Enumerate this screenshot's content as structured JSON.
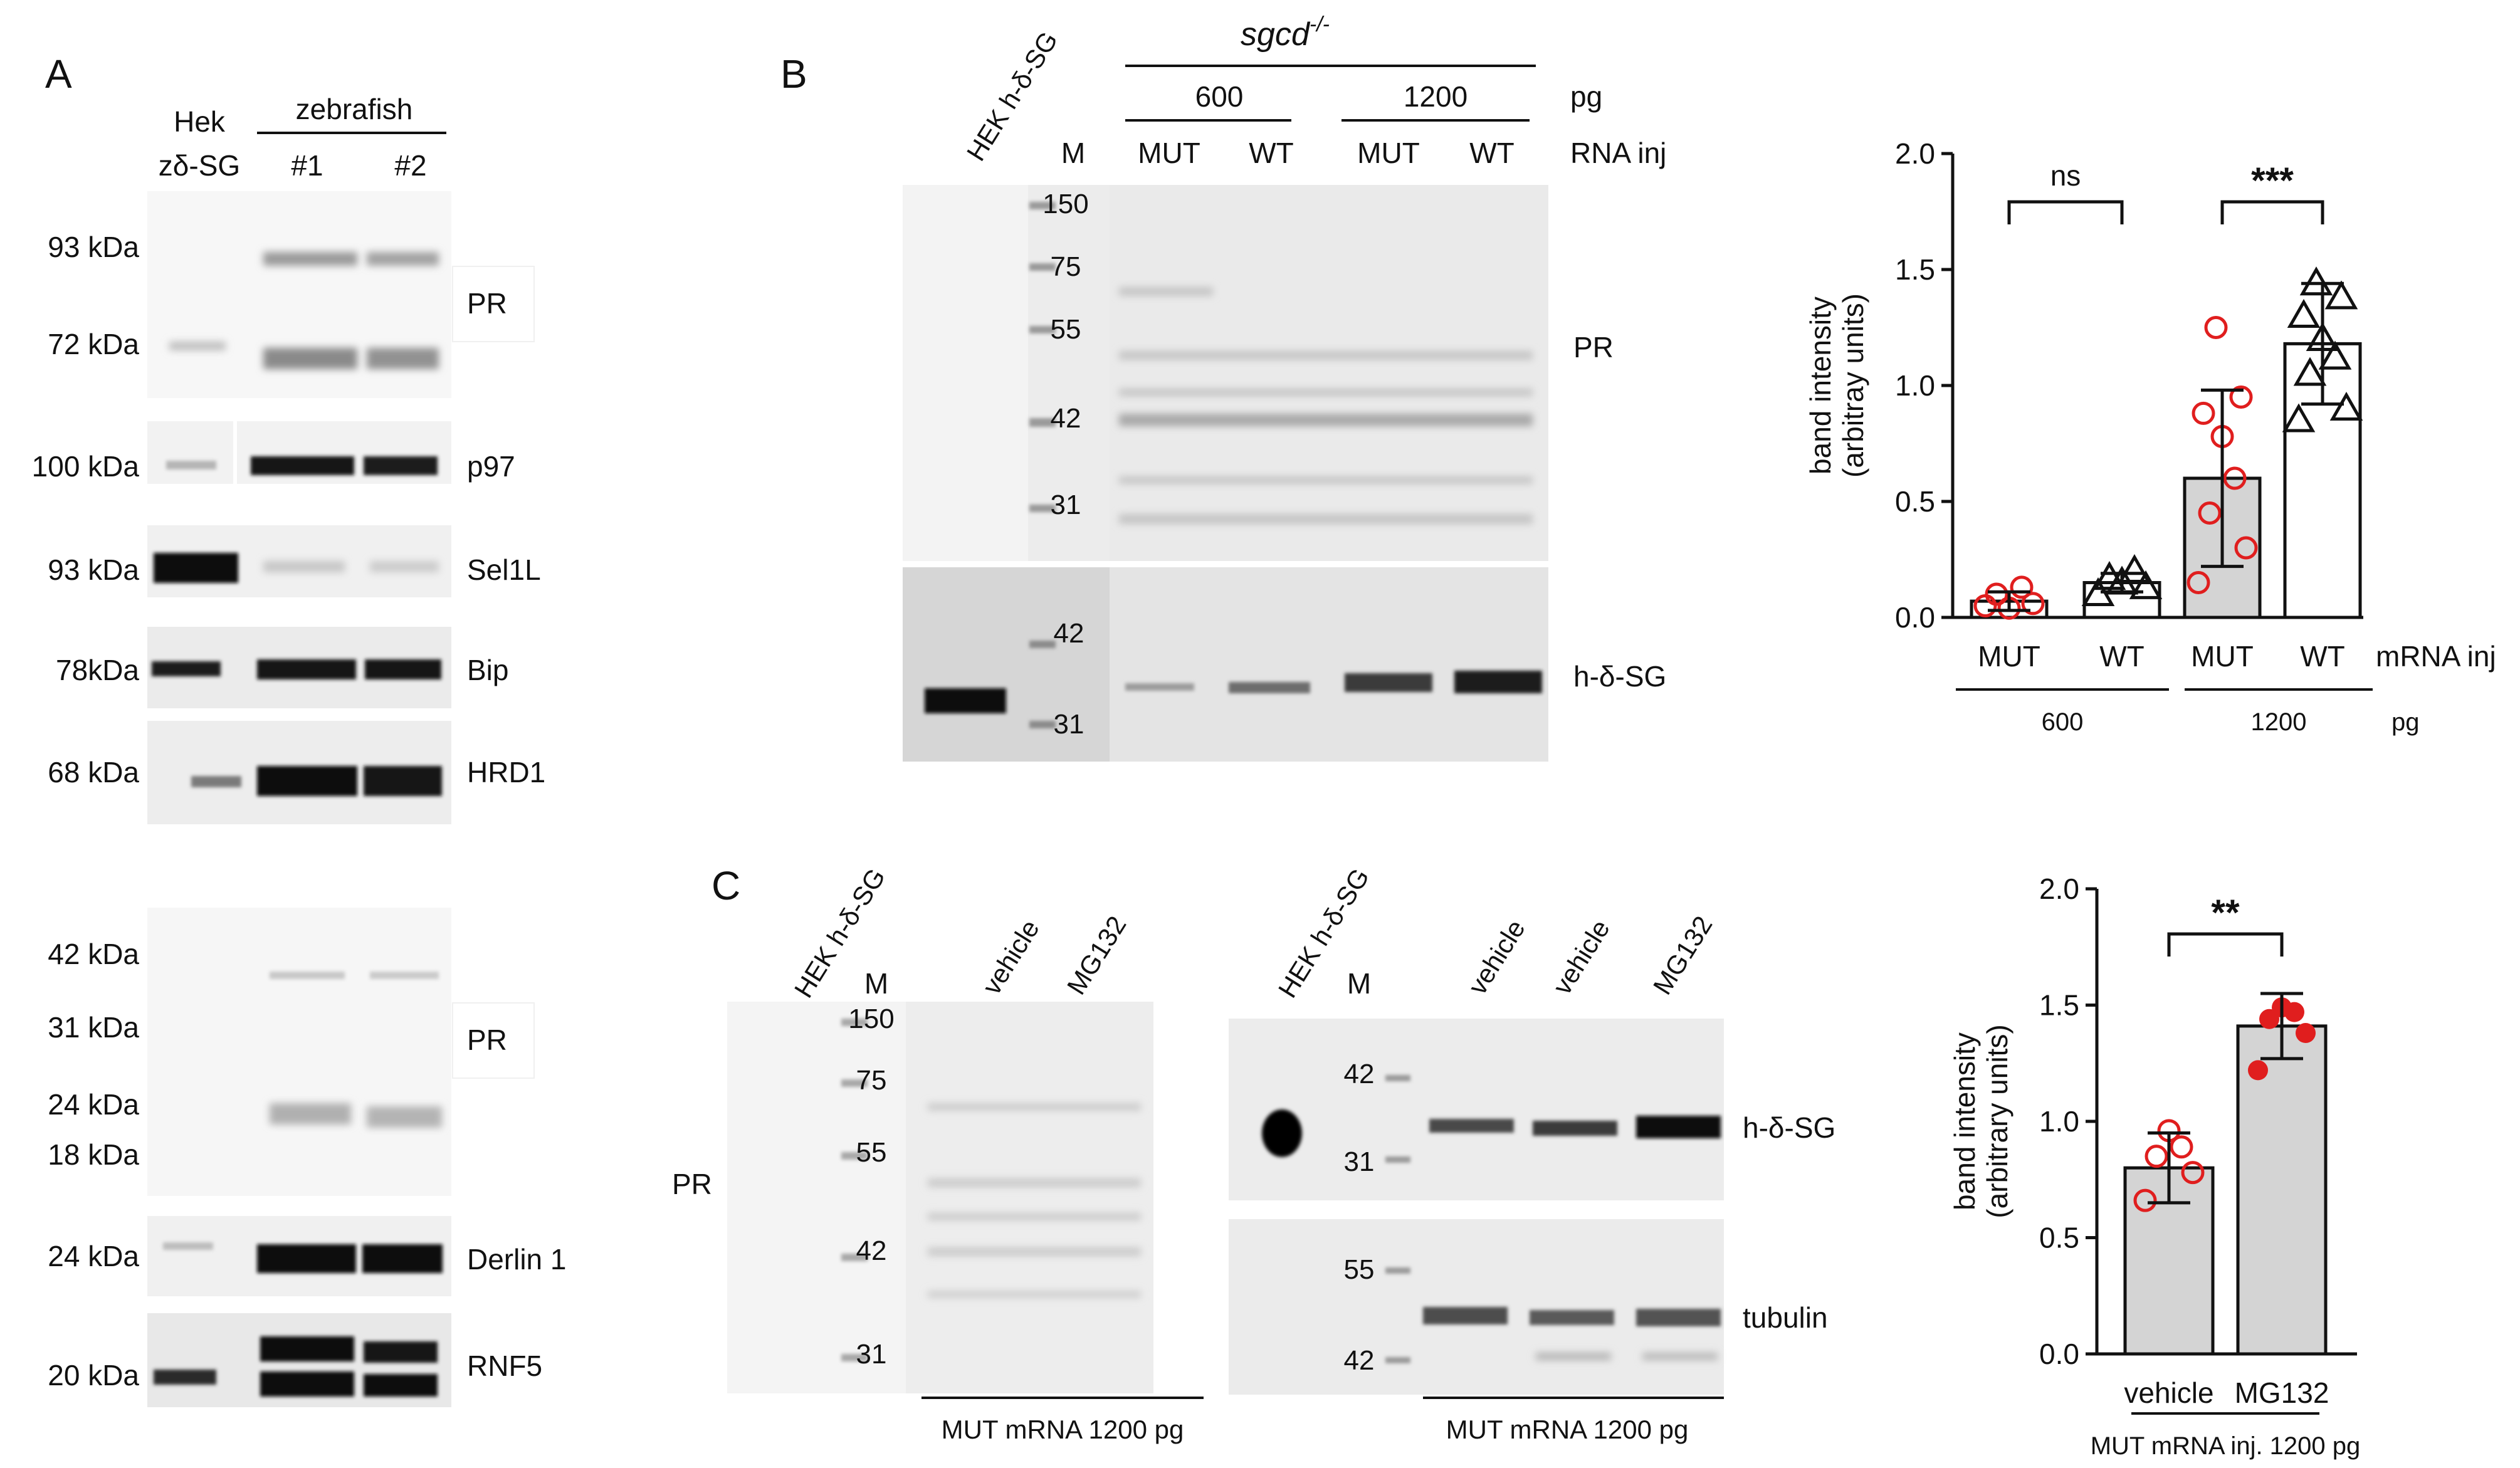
{
  "panel_a": {
    "letter": "A",
    "col_hek_1": "Hek",
    "col_hek_2": "zδ-SG",
    "col_zebrafish": "zebrafish",
    "col_z1": "#1",
    "col_z2": "#2",
    "blots": [
      {
        "name": "PR",
        "kda": [
          "93 kDa",
          "72 kDa"
        ]
      },
      {
        "name": "p97",
        "kda": [
          "100 kDa"
        ]
      },
      {
        "name": "Sel1L",
        "kda": [
          "93 kDa"
        ]
      },
      {
        "name": "Bip",
        "kda": [
          "78kDa"
        ]
      },
      {
        "name": "HRD1",
        "kda": [
          "68 kDa"
        ]
      },
      {
        "name": "PR",
        "kda": [
          "42 kDa",
          "31 kDa",
          "24 kDa",
          "18 kDa"
        ]
      },
      {
        "name": "Derlin 1",
        "kda": [
          "24 kDa"
        ]
      },
      {
        "name": "RNF5",
        "kda": [
          "20 kDa"
        ]
      }
    ]
  },
  "panel_b": {
    "letter": "B",
    "genotype": "sgcd",
    "genotype_sup": "-/-",
    "hek": "HEK h-δ-SG",
    "marker_col": "M",
    "dose_600": "600",
    "dose_1200": "1200",
    "pg": "pg",
    "mut": "MUT",
    "wt": "WT",
    "rna_inj": "RNA inj",
    "pr_label": "PR",
    "sg_label": "h-δ-SG",
    "markers_top": [
      "150",
      "75",
      "55",
      "42",
      "31"
    ],
    "markers_bottom": [
      "42",
      "31"
    ]
  },
  "panel_c": {
    "letter": "C",
    "hek": "HEK h-δ-SG",
    "marker_col": "M",
    "vehicle": "vehicle",
    "mg132": "MG132",
    "pr_label": "PR",
    "markers_left": [
      "150",
      "75",
      "55",
      "42",
      "31"
    ],
    "markers_right_top": [
      "42",
      "31"
    ],
    "markers_right_bottom": [
      "55",
      "42"
    ],
    "sg_label": "h-δ-SG",
    "tubulin_label": "tubulin",
    "caption": "MUT mRNA 1200 pg"
  },
  "chart_data": [
    {
      "type": "bar",
      "panel": "B",
      "categories": [
        "MUT",
        "WT",
        "MUT",
        "WT"
      ],
      "group_labels": [
        "600",
        "1200"
      ],
      "group_unit": "pg",
      "x_suffix": "mRNA inj",
      "ylabel": "band intensity",
      "ylabel2": "(arbitray units)",
      "ylim": [
        0,
        2.0
      ],
      "yticks": [
        "0.0",
        "0.5",
        "1.0",
        "1.5",
        "2.0"
      ],
      "means": [
        0.07,
        0.15,
        0.6,
        1.18
      ],
      "sd": [
        0.04,
        0.04,
        0.38,
        0.26
      ],
      "bar_colors": [
        "#ffffff",
        "#ffffff",
        "#d4d4d4",
        "#ffffff"
      ],
      "points": [
        [
          0.05,
          0.06,
          0.1,
          0.13,
          0.04
        ],
        [
          0.1,
          0.13,
          0.17,
          0.2,
          0.15
        ],
        [
          0.15,
          0.3,
          0.45,
          0.6,
          0.78,
          0.88,
          0.95,
          1.25
        ],
        [
          0.85,
          0.9,
          1.05,
          1.12,
          1.2,
          1.3,
          1.38,
          1.44
        ]
      ],
      "markers": [
        "circle-open-red",
        "triangle-open-black",
        "circle-open-red",
        "triangle-open-black"
      ],
      "significance": [
        {
          "pair": [
            0,
            1
          ],
          "label": "ns"
        },
        {
          "pair": [
            2,
            3
          ],
          "label": "***"
        }
      ]
    },
    {
      "type": "bar",
      "panel": "C",
      "categories": [
        "vehicle",
        "MG132"
      ],
      "caption": "MUT mRNA inj. 1200 pg",
      "ylabel": "band intensity",
      "ylabel2": "(arbitrary units)",
      "ylim": [
        0,
        2.0
      ],
      "yticks": [
        "0.0",
        "0.5",
        "1.0",
        "1.5",
        "2.0"
      ],
      "means": [
        0.8,
        1.41
      ],
      "sd": [
        0.15,
        0.14
      ],
      "bar_colors": [
        "#d4d4d4",
        "#d4d4d4"
      ],
      "points": [
        [
          0.66,
          0.78,
          0.85,
          0.89,
          0.96
        ],
        [
          1.22,
          1.38,
          1.44,
          1.47,
          1.49
        ]
      ],
      "markers": [
        "circle-open-red",
        "circle-filled-red"
      ],
      "significance": [
        {
          "pair": [
            0,
            1
          ],
          "label": "**"
        }
      ]
    }
  ]
}
